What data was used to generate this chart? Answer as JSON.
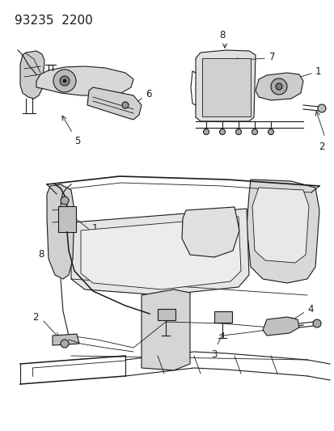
{
  "title": "93235  2200",
  "bg": "#ffffff",
  "lc": "#1a1a1a",
  "title_fontsize": 11,
  "label_fontsize": 8.5
}
